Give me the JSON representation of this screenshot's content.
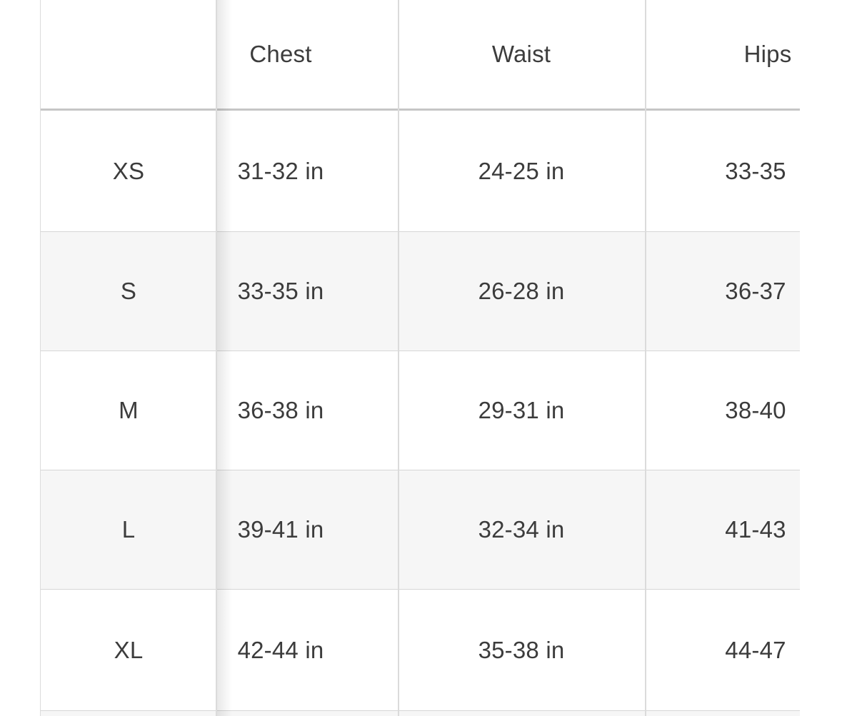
{
  "size_chart": {
    "columns": {
      "size": "",
      "chest": "Chest",
      "waist": "Waist",
      "hips": "Hips"
    },
    "rows": [
      {
        "size": "XS",
        "chest": "31-32 in",
        "waist": "24-25 in",
        "hips": "33-35"
      },
      {
        "size": "S",
        "chest": "33-35 in",
        "waist": "26-28 in",
        "hips": "36-37"
      },
      {
        "size": "M",
        "chest": "36-38 in",
        "waist": "29-31 in",
        "hips": "38-40"
      },
      {
        "size": "L",
        "chest": "39-41 in",
        "waist": "32-34 in",
        "hips": "41-43"
      },
      {
        "size": "XL",
        "chest": "42-44 in",
        "waist": "35-38 in",
        "hips": "44-47"
      }
    ],
    "colors": {
      "row_background": "#ffffff",
      "row_alt_background": "#f6f6f6",
      "text": "#3c3c3c",
      "row_divider": "#d6d6d6",
      "header_divider": "#c6c6c6",
      "column_divider": "#dbdbdb"
    }
  }
}
